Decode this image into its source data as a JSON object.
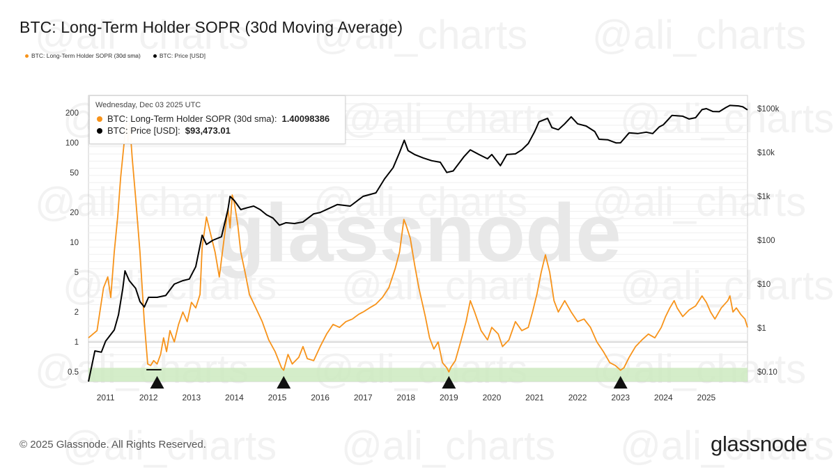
{
  "title": "BTC: Long-Term Holder SOPR (30d Moving Average)",
  "legend": [
    {
      "label": "BTC: Long-Term Holder SOPR (30d sma)",
      "color": "#f7931a"
    },
    {
      "label": "BTC: Price [USD]",
      "color": "#000000"
    }
  ],
  "tooltip": {
    "date": "Wednesday, Dec 03 2025 UTC",
    "rows": [
      {
        "label": "BTC: Long-Term Holder SOPR (30d sma):",
        "value": "1.40098386",
        "color": "#f7931a"
      },
      {
        "label": "BTC: Price [USD]:",
        "value": "$93,473.01",
        "color": "#000000"
      }
    ]
  },
  "watermark": {
    "center": "glassnode",
    "handle": "@ali_charts"
  },
  "footer": "© 2025 Glassnode. All Rights Reserved.",
  "brand": "glassnode",
  "chart_data": {
    "type": "line",
    "x_ticks": [
      "2011",
      "2012",
      "2013",
      "2014",
      "2015",
      "2016",
      "2017",
      "2018",
      "2019",
      "2020",
      "2021",
      "2022",
      "2023",
      "2024",
      "2025"
    ],
    "x_range": [
      2010.6,
      2025.96
    ],
    "left_axis": {
      "scale": "log",
      "ticks": [
        0.5,
        1,
        2,
        5,
        10,
        20,
        50,
        100,
        200
      ],
      "tick_labels": [
        "0.5",
        "1",
        "2",
        "5",
        "10",
        "20",
        "50",
        "100",
        "200"
      ],
      "range": [
        0.4,
        300
      ]
    },
    "right_axis": {
      "scale": "log",
      "ticks": [
        0.1,
        1,
        10,
        100,
        1000,
        10000,
        100000
      ],
      "tick_labels": [
        "$0.10",
        "$1",
        "$10",
        "$100",
        "$1k",
        "$10k",
        "$100k"
      ],
      "range": [
        0.06,
        200000
      ]
    },
    "reference_line": 1,
    "shaded_band": {
      "from": 0.4,
      "to": 0.55,
      "color": "#cdeac0"
    },
    "markers": [
      {
        "x": 2012.2,
        "type": "arrow-up"
      },
      {
        "x": 2015.15,
        "type": "arrow-up"
      },
      {
        "x": 2019.0,
        "type": "arrow-up"
      },
      {
        "x": 2023.0,
        "type": "arrow-up"
      }
    ],
    "marker_bar": {
      "x_from": 2011.95,
      "x_to": 2012.3
    },
    "series": [
      {
        "name": "BTC: Long-Term Holder SOPR (30d sma)",
        "color": "#f7931a",
        "axis": "left",
        "points": [
          [
            2010.6,
            1.1
          ],
          [
            2010.8,
            1.3
          ],
          [
            2010.95,
            3.5
          ],
          [
            2011.05,
            4.5
          ],
          [
            2011.12,
            2.8
          ],
          [
            2011.2,
            8
          ],
          [
            2011.28,
            18
          ],
          [
            2011.35,
            45
          ],
          [
            2011.42,
            90
          ],
          [
            2011.48,
            160
          ],
          [
            2011.52,
            100
          ],
          [
            2011.56,
            160
          ],
          [
            2011.62,
            70
          ],
          [
            2011.7,
            28
          ],
          [
            2011.8,
            8
          ],
          [
            2011.9,
            1.6
          ],
          [
            2011.98,
            0.6
          ],
          [
            2012.05,
            0.58
          ],
          [
            2012.12,
            0.65
          ],
          [
            2012.2,
            0.6
          ],
          [
            2012.28,
            0.75
          ],
          [
            2012.35,
            1.1
          ],
          [
            2012.42,
            0.8
          ],
          [
            2012.5,
            1.3
          ],
          [
            2012.6,
            1.0
          ],
          [
            2012.7,
            1.5
          ],
          [
            2012.8,
            2.0
          ],
          [
            2012.9,
            1.6
          ],
          [
            2013.0,
            2.5
          ],
          [
            2013.1,
            2.2
          ],
          [
            2013.2,
            3.0
          ],
          [
            2013.25,
            9
          ],
          [
            2013.35,
            18
          ],
          [
            2013.45,
            12
          ],
          [
            2013.55,
            8
          ],
          [
            2013.65,
            4.5
          ],
          [
            2013.75,
            10
          ],
          [
            2013.85,
            22
          ],
          [
            2013.9,
            14
          ],
          [
            2013.95,
            30
          ],
          [
            2014.0,
            25
          ],
          [
            2014.08,
            15
          ],
          [
            2014.15,
            8
          ],
          [
            2014.25,
            5
          ],
          [
            2014.35,
            3
          ],
          [
            2014.5,
            2.2
          ],
          [
            2014.65,
            1.6
          ],
          [
            2014.8,
            1.05
          ],
          [
            2014.95,
            0.8
          ],
          [
            2015.1,
            0.55
          ],
          [
            2015.15,
            0.52
          ],
          [
            2015.25,
            0.75
          ],
          [
            2015.35,
            0.6
          ],
          [
            2015.5,
            0.7
          ],
          [
            2015.6,
            0.9
          ],
          [
            2015.7,
            0.68
          ],
          [
            2015.85,
            0.65
          ],
          [
            2016.0,
            0.9
          ],
          [
            2016.15,
            1.2
          ],
          [
            2016.3,
            1.5
          ],
          [
            2016.45,
            1.4
          ],
          [
            2016.6,
            1.6
          ],
          [
            2016.75,
            1.7
          ],
          [
            2016.9,
            1.9
          ],
          [
            2017.0,
            2.0
          ],
          [
            2017.15,
            2.2
          ],
          [
            2017.3,
            2.4
          ],
          [
            2017.45,
            2.8
          ],
          [
            2017.6,
            3.5
          ],
          [
            2017.75,
            5.5
          ],
          [
            2017.85,
            8
          ],
          [
            2017.95,
            17
          ],
          [
            2018.0,
            15
          ],
          [
            2018.1,
            11
          ],
          [
            2018.2,
            6
          ],
          [
            2018.3,
            3.5
          ],
          [
            2018.45,
            1.8
          ],
          [
            2018.55,
            1.1
          ],
          [
            2018.65,
            0.85
          ],
          [
            2018.75,
            1.0
          ],
          [
            2018.85,
            0.62
          ],
          [
            2018.95,
            0.55
          ],
          [
            2019.0,
            0.5
          ],
          [
            2019.05,
            0.56
          ],
          [
            2019.15,
            0.65
          ],
          [
            2019.3,
            1.1
          ],
          [
            2019.4,
            1.6
          ],
          [
            2019.5,
            2.6
          ],
          [
            2019.6,
            2.0
          ],
          [
            2019.75,
            1.3
          ],
          [
            2019.9,
            1.05
          ],
          [
            2020.0,
            1.4
          ],
          [
            2020.15,
            1.2
          ],
          [
            2020.25,
            0.9
          ],
          [
            2020.4,
            1.05
          ],
          [
            2020.55,
            1.6
          ],
          [
            2020.7,
            1.3
          ],
          [
            2020.85,
            1.4
          ],
          [
            2020.95,
            2.0
          ],
          [
            2021.05,
            3
          ],
          [
            2021.15,
            5
          ],
          [
            2021.25,
            7.5
          ],
          [
            2021.35,
            5
          ],
          [
            2021.45,
            2.6
          ],
          [
            2021.55,
            2.0
          ],
          [
            2021.7,
            2.6
          ],
          [
            2021.85,
            2.0
          ],
          [
            2022.0,
            1.6
          ],
          [
            2022.15,
            1.7
          ],
          [
            2022.3,
            1.4
          ],
          [
            2022.45,
            1.0
          ],
          [
            2022.6,
            0.8
          ],
          [
            2022.75,
            0.62
          ],
          [
            2022.88,
            0.58
          ],
          [
            2023.0,
            0.52
          ],
          [
            2023.08,
            0.55
          ],
          [
            2023.2,
            0.7
          ],
          [
            2023.35,
            0.9
          ],
          [
            2023.5,
            1.05
          ],
          [
            2023.65,
            1.2
          ],
          [
            2023.8,
            1.1
          ],
          [
            2023.95,
            1.4
          ],
          [
            2024.05,
            1.8
          ],
          [
            2024.15,
            2.2
          ],
          [
            2024.25,
            2.6
          ],
          [
            2024.32,
            2.2
          ],
          [
            2024.45,
            1.8
          ],
          [
            2024.6,
            2.1
          ],
          [
            2024.75,
            2.3
          ],
          [
            2024.9,
            2.9
          ],
          [
            2025.0,
            2.5
          ],
          [
            2025.1,
            2.0
          ],
          [
            2025.2,
            1.7
          ],
          [
            2025.35,
            2.2
          ],
          [
            2025.5,
            2.6
          ],
          [
            2025.55,
            2.9
          ],
          [
            2025.62,
            2.0
          ],
          [
            2025.7,
            2.2
          ],
          [
            2025.8,
            1.9
          ],
          [
            2025.9,
            1.7
          ],
          [
            2025.96,
            1.4
          ]
        ]
      },
      {
        "name": "BTC: Price [USD]",
        "color": "#000000",
        "axis": "right",
        "points": [
          [
            2010.6,
            0.06
          ],
          [
            2010.75,
            0.3
          ],
          [
            2010.9,
            0.28
          ],
          [
            2011.0,
            0.5
          ],
          [
            2011.2,
            0.9
          ],
          [
            2011.3,
            2
          ],
          [
            2011.4,
            8
          ],
          [
            2011.45,
            20
          ],
          [
            2011.55,
            12
          ],
          [
            2011.7,
            8
          ],
          [
            2011.8,
            4
          ],
          [
            2011.9,
            3
          ],
          [
            2012.0,
            5
          ],
          [
            2012.2,
            5
          ],
          [
            2012.4,
            5.5
          ],
          [
            2012.6,
            10
          ],
          [
            2012.8,
            12
          ],
          [
            2012.95,
            13
          ],
          [
            2013.1,
            25
          ],
          [
            2013.25,
            130
          ],
          [
            2013.35,
            80
          ],
          [
            2013.5,
            100
          ],
          [
            2013.7,
            120
          ],
          [
            2013.85,
            500
          ],
          [
            2013.9,
            1000
          ],
          [
            2014.0,
            800
          ],
          [
            2014.15,
            500
          ],
          [
            2014.3,
            550
          ],
          [
            2014.45,
            600
          ],
          [
            2014.6,
            500
          ],
          [
            2014.75,
            380
          ],
          [
            2014.9,
            320
          ],
          [
            2015.05,
            220
          ],
          [
            2015.2,
            250
          ],
          [
            2015.4,
            240
          ],
          [
            2015.6,
            260
          ],
          [
            2015.85,
            400
          ],
          [
            2016.0,
            430
          ],
          [
            2016.4,
            650
          ],
          [
            2016.7,
            600
          ],
          [
            2017.0,
            1000
          ],
          [
            2017.3,
            1200
          ],
          [
            2017.5,
            2500
          ],
          [
            2017.7,
            4500
          ],
          [
            2017.85,
            10000
          ],
          [
            2017.96,
            19000
          ],
          [
            2018.05,
            11000
          ],
          [
            2018.2,
            9000
          ],
          [
            2018.4,
            7500
          ],
          [
            2018.6,
            6500
          ],
          [
            2018.8,
            6000
          ],
          [
            2018.95,
            3500
          ],
          [
            2019.1,
            3800
          ],
          [
            2019.35,
            8000
          ],
          [
            2019.5,
            11500
          ],
          [
            2019.7,
            9000
          ],
          [
            2019.9,
            7200
          ],
          [
            2020.0,
            9000
          ],
          [
            2020.2,
            5000
          ],
          [
            2020.35,
            9000
          ],
          [
            2020.55,
            9300
          ],
          [
            2020.7,
            11500
          ],
          [
            2020.85,
            16000
          ],
          [
            2021.0,
            30000
          ],
          [
            2021.1,
            50000
          ],
          [
            2021.3,
            60000
          ],
          [
            2021.4,
            37000
          ],
          [
            2021.55,
            33000
          ],
          [
            2021.7,
            45000
          ],
          [
            2021.85,
            65000
          ],
          [
            2022.0,
            45000
          ],
          [
            2022.2,
            40000
          ],
          [
            2022.4,
            30000
          ],
          [
            2022.5,
            20000
          ],
          [
            2022.7,
            19500
          ],
          [
            2022.9,
            16500
          ],
          [
            2023.0,
            16600
          ],
          [
            2023.2,
            28000
          ],
          [
            2023.4,
            27000
          ],
          [
            2023.6,
            29000
          ],
          [
            2023.75,
            27000
          ],
          [
            2023.9,
            38000
          ],
          [
            2024.0,
            43000
          ],
          [
            2024.2,
            70000
          ],
          [
            2024.45,
            67000
          ],
          [
            2024.6,
            58000
          ],
          [
            2024.75,
            62000
          ],
          [
            2024.9,
            95000
          ],
          [
            2025.0,
            100000
          ],
          [
            2025.15,
            86000
          ],
          [
            2025.3,
            85000
          ],
          [
            2025.45,
            105000
          ],
          [
            2025.55,
            118000
          ],
          [
            2025.75,
            115000
          ],
          [
            2025.85,
            110000
          ],
          [
            2025.96,
            93473
          ]
        ]
      }
    ]
  }
}
